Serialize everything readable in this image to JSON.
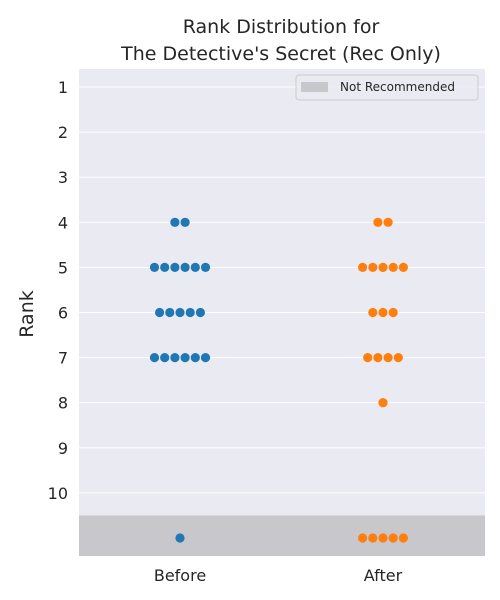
{
  "chart_data": {
    "type": "scatter",
    "title_lines": [
      "Rank Distribution for",
      "The Detective's Secret (Rec Only)"
    ],
    "xlabel": "",
    "ylabel": "Rank",
    "categories": [
      "Before",
      "After"
    ],
    "yticks": [
      "1",
      "2",
      "3",
      "4",
      "5",
      "6",
      "7",
      "8",
      "9",
      "10"
    ],
    "ylim": [
      0.6,
      11.4
    ],
    "not_recommended_rank": 11,
    "grid": true,
    "legend": {
      "position": "top-right",
      "label": "Not Recommended"
    },
    "series": [
      {
        "category": "Before",
        "color": "#1f77b4",
        "counts": [
          {
            "rank": 4,
            "count": 2
          },
          {
            "rank": 5,
            "count": 6
          },
          {
            "rank": 6,
            "count": 5
          },
          {
            "rank": 7,
            "count": 6
          },
          {
            "rank": 11,
            "count": 1
          }
        ]
      },
      {
        "category": "After",
        "color": "#ff7f0e",
        "counts": [
          {
            "rank": 4,
            "count": 2
          },
          {
            "rank": 5,
            "count": 5
          },
          {
            "rank": 6,
            "count": 3
          },
          {
            "rank": 7,
            "count": 4
          },
          {
            "rank": 8,
            "count": 1
          },
          {
            "rank": 11,
            "count": 5
          }
        ]
      }
    ],
    "colors": {
      "plot_bg": "#eaeaf2",
      "grid": "#ffffff",
      "band": "#c8c8cc",
      "text": "#262626"
    }
  }
}
